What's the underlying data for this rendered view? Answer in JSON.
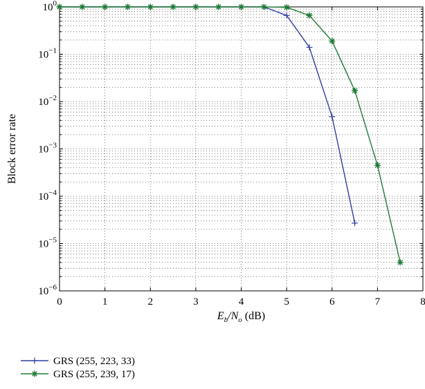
{
  "chart_data": {
    "type": "line",
    "title": "",
    "xlabel": {
      "main": "E",
      "sub1": "b",
      "slash": "/N",
      "sub2": "o",
      "unit": " (dB)"
    },
    "ylabel": "Block error rate",
    "xlim": [
      0,
      8
    ],
    "ylim": [
      1e-06,
      1
    ],
    "yscale": "log",
    "grid": "dotted",
    "legend_position": "bottom-left-outside",
    "x_ticks": [
      "0",
      "1",
      "2",
      "3",
      "4",
      "5",
      "6",
      "7",
      "8"
    ],
    "y_ticks": [
      {
        "base": "10",
        "exp": "0"
      },
      {
        "base": "10",
        "exp": "−1"
      },
      {
        "base": "10",
        "exp": "−2"
      },
      {
        "base": "10",
        "exp": "−3"
      },
      {
        "base": "10",
        "exp": "−4"
      },
      {
        "base": "10",
        "exp": "−5"
      },
      {
        "base": "10",
        "exp": "−6"
      }
    ],
    "series": [
      {
        "name": "GRS (255, 223, 33)",
        "color": "#2f3f9f",
        "marker": "plus",
        "x": [
          0,
          0.5,
          1,
          1.5,
          2,
          2.5,
          3,
          3.5,
          4,
          4.5,
          5,
          5.5,
          6,
          6.5
        ],
        "y": [
          1,
          1,
          1,
          1,
          1,
          1,
          1,
          1,
          1,
          1,
          0.66,
          0.14,
          0.0048,
          2.7e-05
        ]
      },
      {
        "name": "GRS (255, 239, 17)",
        "color": "#1e7a34",
        "marker": "asterisk",
        "x": [
          0,
          0.5,
          1,
          1.5,
          2,
          2.5,
          3,
          3.5,
          4,
          4.5,
          5,
          5.5,
          6,
          6.5,
          7,
          7.5
        ],
        "y": [
          1,
          1,
          1,
          1,
          1,
          1,
          1,
          1,
          1,
          1,
          0.98,
          0.66,
          0.19,
          0.017,
          0.00045,
          4e-06
        ]
      }
    ]
  }
}
